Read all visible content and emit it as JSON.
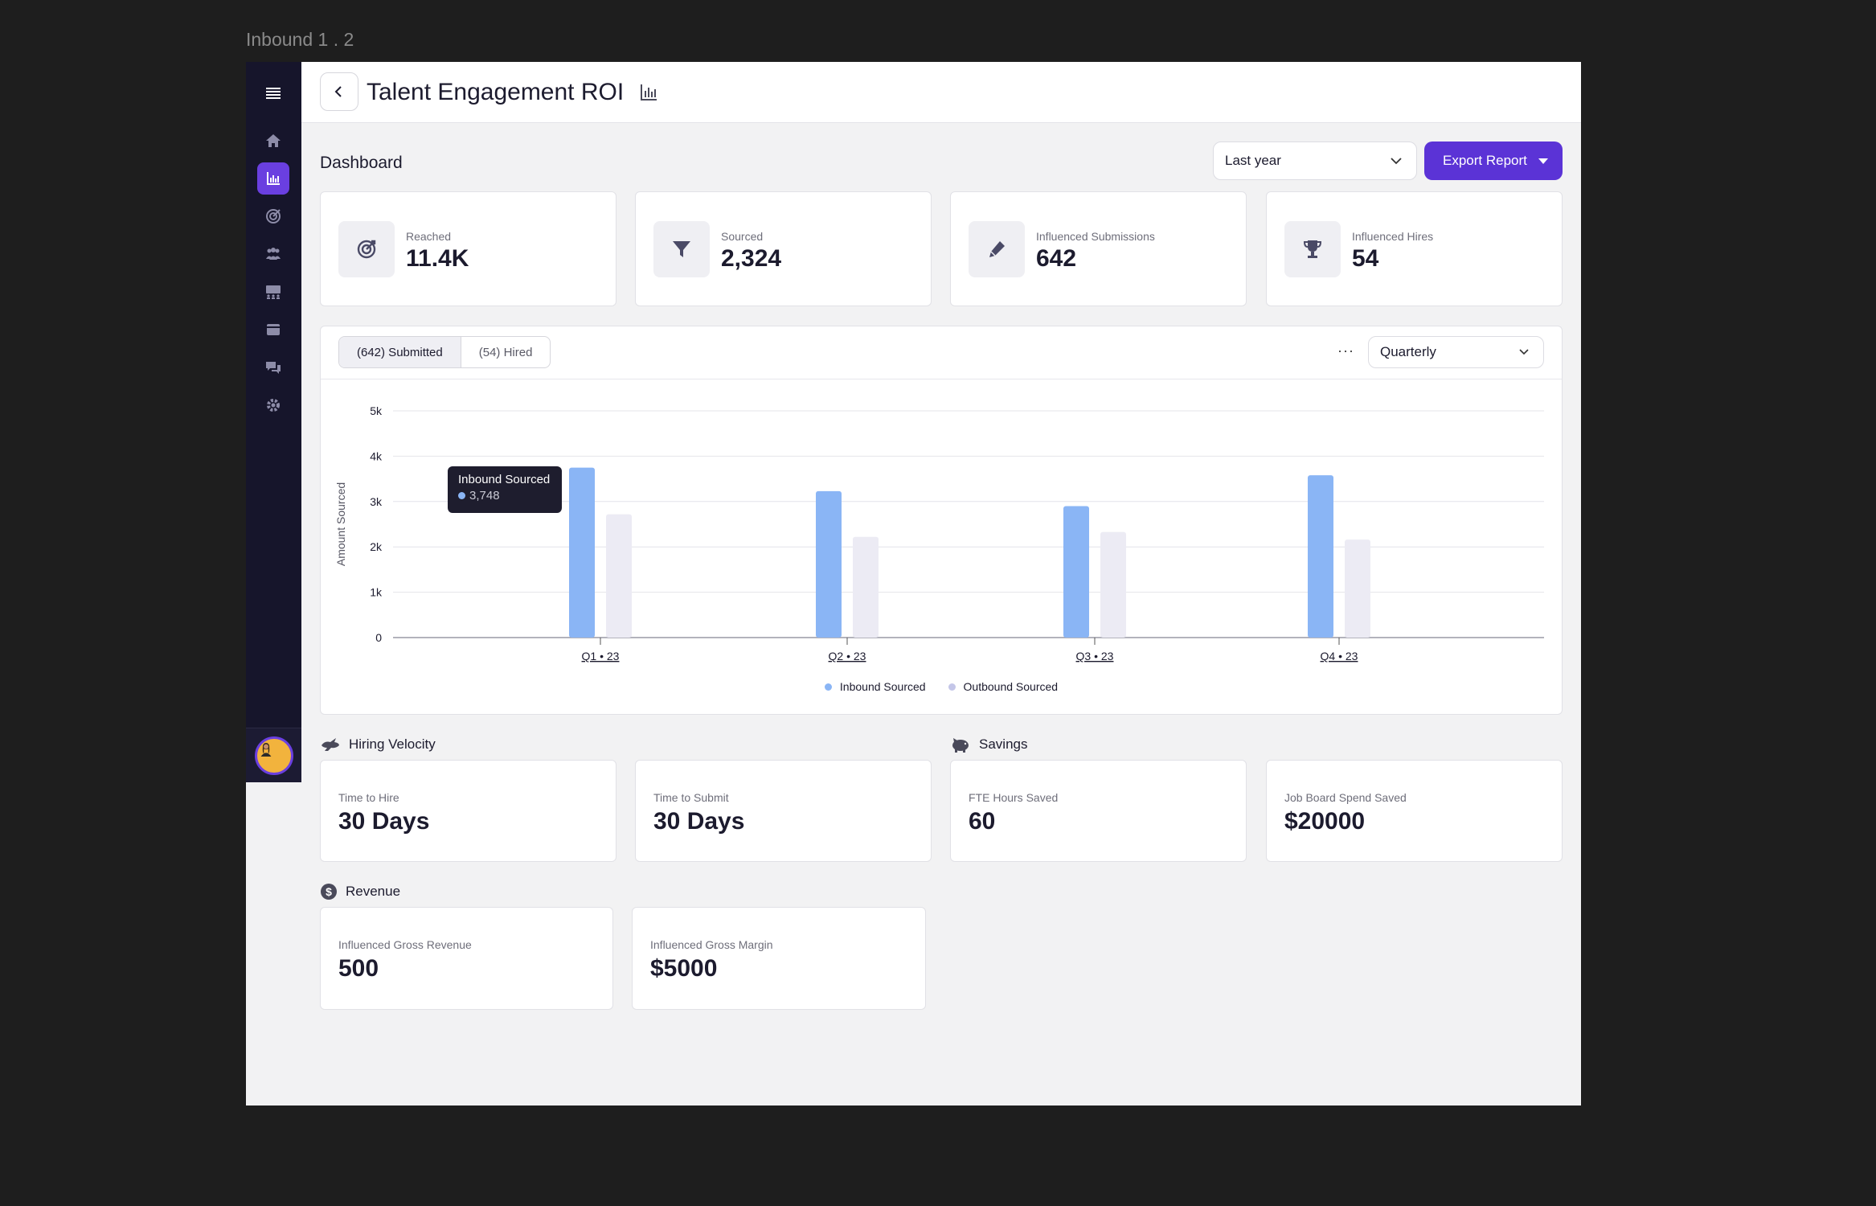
{
  "frame_label": "Inbound 1 . 2",
  "header": {
    "title": "Talent Engagement ROI"
  },
  "dashboard": {
    "label": "Dashboard",
    "period_select": "Last year",
    "export_label": "Export Report"
  },
  "stats": [
    {
      "label": "Reached",
      "value": "11.4K",
      "icon": "target-icon"
    },
    {
      "label": "Sourced",
      "value": "2,324",
      "icon": "funnel-icon"
    },
    {
      "label": "Influenced Submissions",
      "value": "642",
      "icon": "pen-icon"
    },
    {
      "label": "Influenced Hires",
      "value": "54",
      "icon": "trophy-icon"
    }
  ],
  "chart_toolbar": {
    "tab_submitted": "(642) Submitted",
    "tab_hired": "(54) Hired",
    "more": "···",
    "interval_select": "Quarterly"
  },
  "tooltip": {
    "title": "Inbound Sourced",
    "value": "3,748"
  },
  "chart_data": {
    "type": "bar",
    "categories": [
      "Q1 • 23",
      "Q2 • 23",
      "Q3 • 23",
      "Q4 • 23"
    ],
    "series": [
      {
        "name": "Inbound Sourced",
        "values": [
          3748,
          3230,
          2900,
          3580
        ],
        "color": "#8ab5f5"
      },
      {
        "name": "Outbound Sourced",
        "values": [
          2720,
          2220,
          2330,
          2160
        ],
        "color": "#ecebf4"
      }
    ],
    "ylabel": "Amount Sourced",
    "yticks": [
      "0",
      "1k",
      "2k",
      "3k",
      "4k",
      "5k"
    ],
    "ylim": [
      0,
      5000
    ],
    "grid": true,
    "legend": "bottom-center"
  },
  "hiring_velocity": {
    "title": "Hiring Velocity",
    "items": [
      {
        "label": "Time to Hire",
        "value": "30 Days"
      },
      {
        "label": "Time to Submit",
        "value": "30 Days"
      }
    ]
  },
  "savings": {
    "title": "Savings",
    "items": [
      {
        "label": "FTE Hours Saved",
        "value": "60"
      },
      {
        "label": "Job Board Spend Saved",
        "value": "$20000"
      }
    ]
  },
  "revenue": {
    "title": "Revenue",
    "items": [
      {
        "label": "Influenced Gross Revenue",
        "value": "500"
      },
      {
        "label": "Influenced Gross Margin",
        "value": "$5000"
      }
    ]
  }
}
